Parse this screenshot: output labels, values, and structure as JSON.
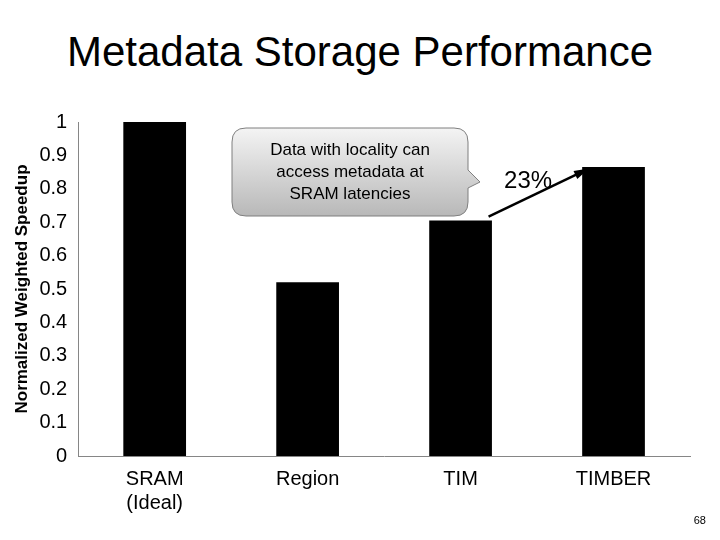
{
  "chart_data": {
    "type": "bar",
    "title": "Metadata Storage Performance",
    "y_label": "Normalized Weighted Speedup",
    "categories": [
      "SRAM\n(Ideal)",
      "Region",
      "TIM",
      "TIMBER"
    ],
    "values": [
      1,
      0.52,
      0.705,
      0.865
    ],
    "color": "#000000",
    "ylim": [
      0,
      1
    ],
    "yticks": [
      0,
      0.1,
      0.2,
      0.3,
      0.4,
      0.5,
      0.6,
      0.7,
      0.8,
      0.9,
      1
    ],
    "grid": false,
    "annotations": [
      "Data with locality can\naccess metadata at\nSRAM latencies",
      "23%"
    ],
    "page_number": "68"
  }
}
